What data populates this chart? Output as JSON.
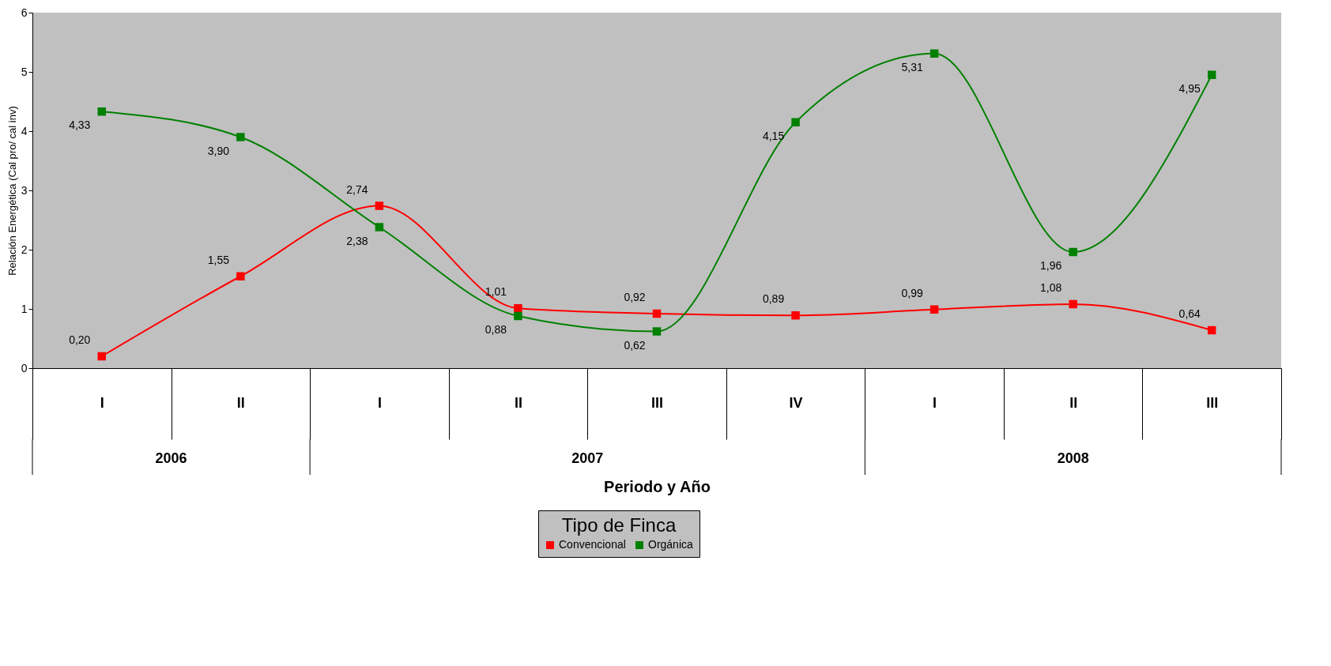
{
  "chart_data": {
    "type": "line",
    "xlabel": "Periodo y Año",
    "ylabel": "Relación Energética (Cal pro/ cal inv)",
    "legend_title": "Tipo de Finca",
    "categories": [
      "I",
      "II",
      "I",
      "II",
      "III",
      "IV",
      "I",
      "II",
      "III"
    ],
    "series": [
      {
        "name": "Convencional",
        "color": "#ff0000",
        "values": [
          0.2,
          1.55,
          2.74,
          1.01,
          0.92,
          0.89,
          0.99,
          1.08,
          0.64
        ],
        "value_labels": [
          "0,20",
          "1,55",
          "2,74",
          "1,01",
          "0,92",
          "0,89",
          "0,99",
          "1,08",
          "0,64"
        ]
      },
      {
        "name": "Orgánica",
        "color": "#008000",
        "values": [
          4.33,
          3.9,
          2.38,
          0.88,
          0.62,
          4.15,
          5.31,
          1.96,
          4.95
        ],
        "value_labels": [
          "4,33",
          "3,90",
          "2,38",
          "0,88",
          "0,62",
          "4,15",
          "5,31",
          "1,96",
          "4,95"
        ]
      }
    ],
    "annotations": [
      "2006",
      "2007",
      "2008"
    ],
    "ylim": [
      0,
      6
    ],
    "yticks": [
      0,
      1,
      2,
      3,
      4,
      5,
      6
    ],
    "grid": false,
    "legend": "bottom",
    "marker": "square",
    "line_style": "solid"
  }
}
